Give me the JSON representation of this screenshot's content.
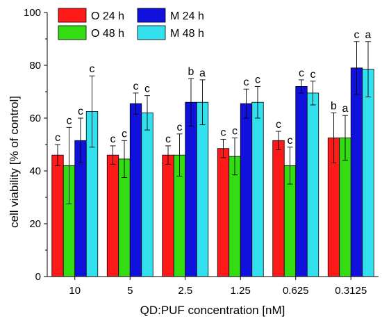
{
  "chart_data": {
    "type": "bar",
    "xlabel": "QD:PUF concentration [nM]",
    "ylabel": "cell viability [% of control]",
    "ylim": [
      0,
      100
    ],
    "yticks": [
      0,
      20,
      40,
      60,
      80,
      100
    ],
    "grid": false,
    "legend_position": "top-left",
    "categories": [
      "10",
      "5",
      "2.5",
      "1.25",
      "0.625",
      "0.3125"
    ],
    "series": [
      {
        "name": "O 24 h",
        "color": "#ff1a1a",
        "values": [
          46,
          46,
          46,
          48.5,
          51.5,
          52.5
        ],
        "errors": [
          4,
          3.5,
          3.5,
          3.5,
          3.5,
          9.5
        ],
        "annotations": [
          "c",
          "c",
          "c",
          "c",
          "c",
          "b"
        ]
      },
      {
        "name": "O 48 h",
        "color": "#33dd11",
        "values": [
          42,
          44.5,
          46,
          45.5,
          42,
          52.5
        ],
        "errors": [
          14.5,
          7,
          8,
          7,
          7,
          8.5
        ],
        "annotations": [
          "c",
          "c",
          "c",
          "c",
          "c",
          "a"
        ]
      },
      {
        "name": "M  24 h",
        "color": "#1111dd",
        "values": [
          51.5,
          65.5,
          66,
          65.5,
          72,
          79
        ],
        "errors": [
          8.5,
          4,
          9,
          5.5,
          2.5,
          10
        ],
        "annotations": [
          "c",
          "c",
          "b",
          "c",
          "c",
          "c"
        ]
      },
      {
        "name": "M 48 h",
        "color": "#33e0ee",
        "values": [
          62.5,
          62,
          66,
          66,
          69.5,
          78.5
        ],
        "errors": [
          13.5,
          6.5,
          8.5,
          6,
          4.5,
          10.5
        ],
        "annotations": [
          "c",
          "c",
          "a",
          "c",
          "c",
          "a"
        ]
      }
    ]
  }
}
